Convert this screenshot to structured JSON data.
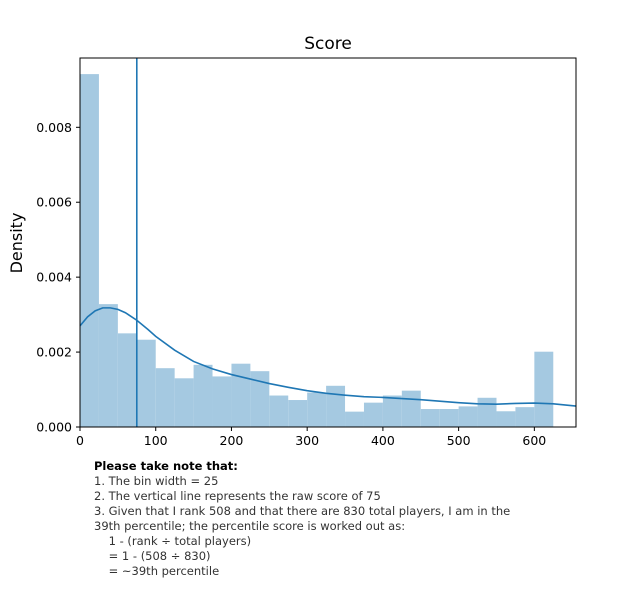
{
  "chart_data": {
    "type": "bar",
    "title": "Score",
    "xlabel": "",
    "ylabel": "Density",
    "xlim": [
      0,
      655
    ],
    "ylim": [
      0,
      0.00985
    ],
    "xticks": [
      0,
      100,
      200,
      300,
      400,
      500,
      600
    ],
    "yticks": [
      0.0,
      0.002,
      0.004,
      0.006,
      0.008
    ],
    "ytick_labels": [
      "0.000",
      "0.002",
      "0.004",
      "0.006",
      "0.008"
    ],
    "grid": false,
    "bin_width": 25,
    "bins": [
      {
        "x0": 0,
        "x1": 25,
        "density": 0.00942
      },
      {
        "x0": 25,
        "x1": 50,
        "density": 0.00328
      },
      {
        "x0": 50,
        "x1": 75,
        "density": 0.0025
      },
      {
        "x0": 75,
        "x1": 100,
        "density": 0.00233
      },
      {
        "x0": 100,
        "x1": 125,
        "density": 0.00157
      },
      {
        "x0": 125,
        "x1": 150,
        "density": 0.0013
      },
      {
        "x0": 150,
        "x1": 175,
        "density": 0.00166
      },
      {
        "x0": 175,
        "x1": 200,
        "density": 0.00135
      },
      {
        "x0": 200,
        "x1": 225,
        "density": 0.00169
      },
      {
        "x0": 225,
        "x1": 250,
        "density": 0.00149
      },
      {
        "x0": 250,
        "x1": 275,
        "density": 0.00084
      },
      {
        "x0": 275,
        "x1": 300,
        "density": 0.00072
      },
      {
        "x0": 300,
        "x1": 325,
        "density": 0.00092
      },
      {
        "x0": 325,
        "x1": 350,
        "density": 0.0011
      },
      {
        "x0": 350,
        "x1": 375,
        "density": 0.00041
      },
      {
        "x0": 375,
        "x1": 400,
        "density": 0.00065
      },
      {
        "x0": 400,
        "x1": 425,
        "density": 0.00084
      },
      {
        "x0": 425,
        "x1": 450,
        "density": 0.00097
      },
      {
        "x0": 450,
        "x1": 475,
        "density": 0.00048
      },
      {
        "x0": 475,
        "x1": 500,
        "density": 0.00048
      },
      {
        "x0": 500,
        "x1": 525,
        "density": 0.00055
      },
      {
        "x0": 525,
        "x1": 550,
        "density": 0.00078
      },
      {
        "x0": 550,
        "x1": 575,
        "density": 0.00042
      },
      {
        "x0": 575,
        "x1": 600,
        "density": 0.00053
      },
      {
        "x0": 600,
        "x1": 625,
        "density": 0.00201
      }
    ],
    "kde": {
      "x": [
        0,
        10,
        20,
        30,
        40,
        50,
        60,
        75,
        90,
        100,
        125,
        150,
        175,
        200,
        225,
        250,
        275,
        300,
        325,
        350,
        375,
        400,
        425,
        450,
        475,
        500,
        525,
        550,
        575,
        600,
        625,
        655
      ],
      "y": [
        0.0027,
        0.00294,
        0.0031,
        0.00318,
        0.00318,
        0.00314,
        0.00305,
        0.00285,
        0.0026,
        0.00242,
        0.00205,
        0.00175,
        0.00155,
        0.0014,
        0.00128,
        0.00116,
        0.00106,
        0.00097,
        0.0009,
        0.00085,
        0.00081,
        0.00079,
        0.00076,
        0.00073,
        0.00069,
        0.00065,
        0.00062,
        0.00061,
        0.00063,
        0.00064,
        0.00062,
        0.00056
      ]
    },
    "vline": {
      "x": 75
    },
    "bar_color": "#a5c9e1",
    "line_color": "#1f77b4"
  },
  "note": {
    "heading": "Please take note that:",
    "lines": [
      "1. The bin width = 25",
      "2. The vertical line represents the raw score of 75",
      "3. Given that I rank 508 and that there are 830 total players, I am in the",
      "39th percentile; the percentile score is worked out as:",
      "    1 - (rank ÷ total players)",
      "    = 1 - (508 ÷ 830)",
      "    = ~39th percentile"
    ]
  }
}
